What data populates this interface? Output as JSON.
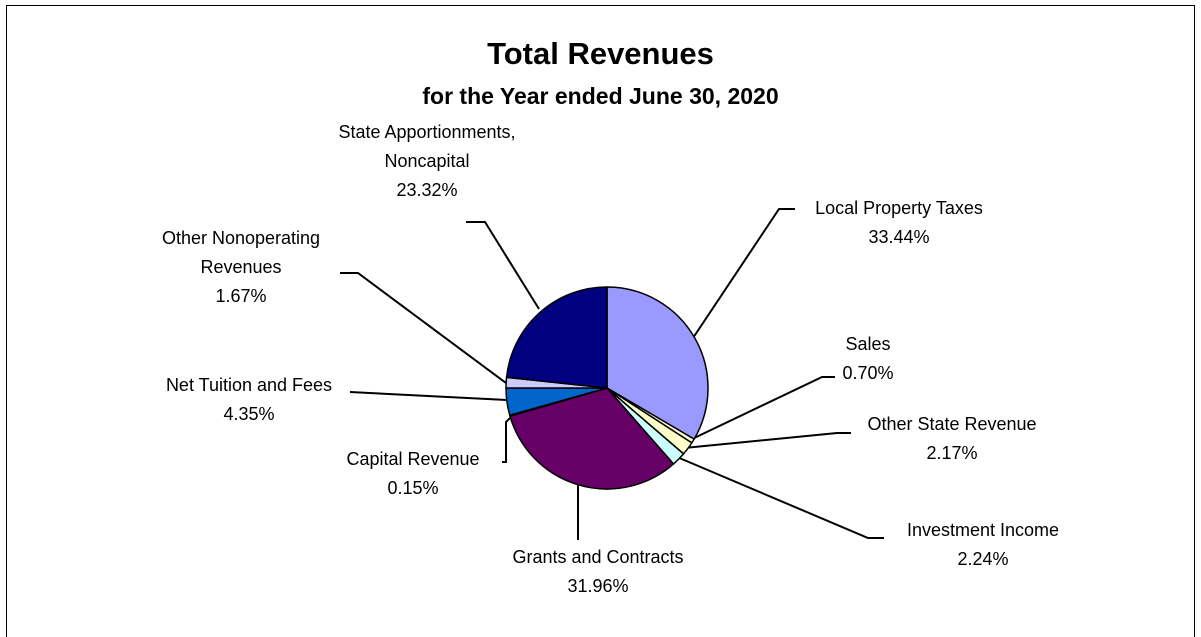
{
  "title": "Total Revenues",
  "subtitle": "for the Year ended June 30, 2020",
  "chart_data": {
    "type": "pie",
    "title": "Total Revenues",
    "subtitle": "for the Year ended June 30, 2020",
    "start": "12 o'clock",
    "direction": "clockwise",
    "slices": [
      {
        "label": "Local Property Taxes",
        "lines": [
          "Local Property Taxes"
        ],
        "value": 33.44,
        "value_text": "33.44%",
        "color": "#9999FF"
      },
      {
        "label": "Sales",
        "lines": [
          "Sales"
        ],
        "value": 0.7,
        "value_text": "0.70%",
        "color": "#FFFFCC"
      },
      {
        "label": "Other State Revenue",
        "lines": [
          "Other State Revenue"
        ],
        "value": 2.17,
        "value_text": "2.17%",
        "color": "#FFFFCC"
      },
      {
        "label": "Investment Income",
        "lines": [
          "Investment Income"
        ],
        "value": 2.24,
        "value_text": "2.24%",
        "color": "#CCFFFF"
      },
      {
        "label": "Grants and Contracts",
        "lines": [
          "Grants and Contracts"
        ],
        "value": 31.96,
        "value_text": "31.96%",
        "color": "#660066"
      },
      {
        "label": "Capital Revenue",
        "lines": [
          "Capital Revenue"
        ],
        "value": 0.15,
        "value_text": "0.15%",
        "color": "#FF8080"
      },
      {
        "label": "Net Tuition and Fees",
        "lines": [
          "Net Tuition and Fees"
        ],
        "value": 4.35,
        "value_text": "4.35%",
        "color": "#0066CC"
      },
      {
        "label": "Other Nonoperating Revenues",
        "lines": [
          "Other Nonoperating",
          "Revenues"
        ],
        "value": 1.67,
        "value_text": "1.67%",
        "color": "#CCCCFF"
      },
      {
        "label": "State Apportionments, Noncapital",
        "lines": [
          "State Apportionments,",
          "Noncapital"
        ],
        "value": 23.32,
        "value_text": "23.32%",
        "color": "#000080"
      }
    ]
  }
}
